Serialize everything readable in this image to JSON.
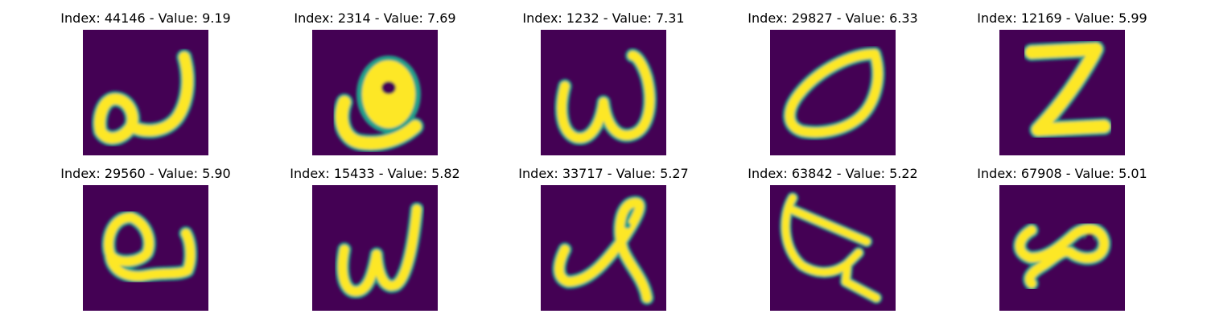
{
  "colors": {
    "background": "#440154",
    "ink": "#fde725",
    "edge": "#21a08a",
    "title": "#000000"
  },
  "panels": [
    {
      "title": "Index: 44146 - Value: 9.19",
      "index": 44146,
      "value": 9.19,
      "glyph": "a-loop"
    },
    {
      "title": "Index: 2314 - Value: 7.69",
      "index": 2314,
      "value": 7.69,
      "glyph": "blob-hook"
    },
    {
      "title": "Index: 1232 - Value: 7.31",
      "index": 1232,
      "value": 7.31,
      "glyph": "w"
    },
    {
      "title": "Index: 29827 - Value: 6.33",
      "index": 29827,
      "value": 6.33,
      "glyph": "oval"
    },
    {
      "title": "Index: 12169 - Value: 5.99",
      "index": 12169,
      "value": 5.99,
      "glyph": "z"
    },
    {
      "title": "Index: 29560 - Value: 5.90",
      "index": 29560,
      "value": 5.9,
      "glyph": "loop-u"
    },
    {
      "title": "Index: 15433 - Value: 5.82",
      "index": 15433,
      "value": 5.82,
      "glyph": "w-slanted"
    },
    {
      "title": "Index: 33717 - Value: 5.27",
      "index": 33717,
      "value": 5.27,
      "glyph": "curl"
    },
    {
      "title": "Index: 63842 - Value: 5.22",
      "index": 63842,
      "value": 5.22,
      "glyph": "crossed-hook"
    },
    {
      "title": "Index: 67908 - Value: 5.01",
      "index": 67908,
      "value": 5.01,
      "glyph": "infinity"
    }
  ]
}
